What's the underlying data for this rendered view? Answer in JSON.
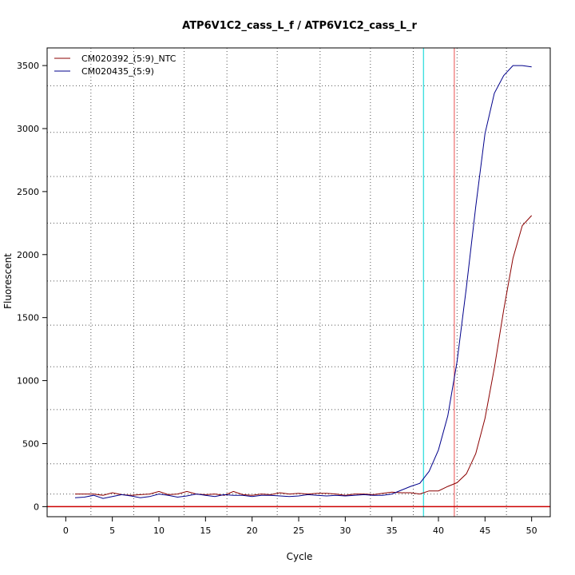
{
  "chart_data": {
    "type": "line",
    "title": "ATP6V1C2_cass_L_f / ATP6V1C2_cass_L_r",
    "xlabel": "Cycle",
    "ylabel": "Fluorescent",
    "xlim": [
      -2,
      52
    ],
    "ylim": [
      -80,
      3640
    ],
    "xticks": [
      0,
      5,
      10,
      15,
      20,
      25,
      30,
      35,
      40,
      45,
      50
    ],
    "yticks": [
      0,
      500,
      1000,
      1500,
      2000,
      2500,
      3000,
      3500
    ],
    "grid": true,
    "grid_x": [
      2.7,
      7.3,
      12.7,
      17.3,
      22.7,
      27.3,
      32.7,
      37.3,
      42.0,
      47.3
    ],
    "grid_y": [
      100,
      340,
      770,
      1110,
      1440,
      1790,
      2250,
      2620,
      2970,
      3340
    ],
    "legend_position": "top-left",
    "threshold_y": 0,
    "threshold_color": "#cc0000",
    "vlines": [
      {
        "x": 38.4,
        "color": "#40e0e0"
      },
      {
        "x": 41.7,
        "color": "#f08080"
      }
    ],
    "series": [
      {
        "name": "CM020392_(5:9)_NTC",
        "color": "#8b0000",
        "x": [
          1,
          2,
          3,
          4,
          5,
          6,
          7,
          8,
          9,
          10,
          11,
          12,
          13,
          14,
          15,
          16,
          17,
          18,
          19,
          20,
          21,
          22,
          23,
          24,
          25,
          26,
          27,
          28,
          29,
          30,
          31,
          32,
          33,
          34,
          35,
          36,
          37,
          38,
          39,
          40,
          41,
          42,
          43,
          44,
          45,
          46,
          47,
          48,
          49,
          50
        ],
        "values": [
          100,
          100,
          100,
          90,
          110,
          95,
          90,
          95,
          100,
          120,
          95,
          100,
          120,
          100,
          95,
          100,
          90,
          120,
          95,
          90,
          100,
          95,
          110,
          100,
          105,
          100,
          105,
          105,
          100,
          90,
          100,
          100,
          95,
          105,
          115,
          110,
          110,
          100,
          125,
          125,
          160,
          190,
          260,
          420,
          700,
          1100,
          1560,
          1970,
          2230,
          2310
        ]
      },
      {
        "name": "CM020435_(5:9)",
        "color": "#00008b",
        "x": [
          1,
          2,
          3,
          4,
          5,
          6,
          7,
          8,
          9,
          10,
          11,
          12,
          13,
          14,
          15,
          16,
          17,
          18,
          19,
          20,
          21,
          22,
          23,
          24,
          25,
          26,
          27,
          28,
          29,
          30,
          31,
          32,
          33,
          34,
          35,
          36,
          37,
          38,
          39,
          40,
          41,
          42,
          43,
          44,
          45,
          46,
          47,
          48,
          49,
          50
        ],
        "values": [
          70,
          75,
          90,
          65,
          80,
          95,
          85,
          70,
          80,
          100,
          90,
          75,
          85,
          100,
          90,
          80,
          95,
          90,
          90,
          80,
          90,
          90,
          85,
          80,
          85,
          95,
          90,
          85,
          90,
          85,
          90,
          95,
          90,
          90,
          100,
          130,
          160,
          185,
          280,
          450,
          720,
          1150,
          1740,
          2380,
          2960,
          3280,
          3420,
          3500,
          3500,
          3490
        ]
      }
    ]
  }
}
